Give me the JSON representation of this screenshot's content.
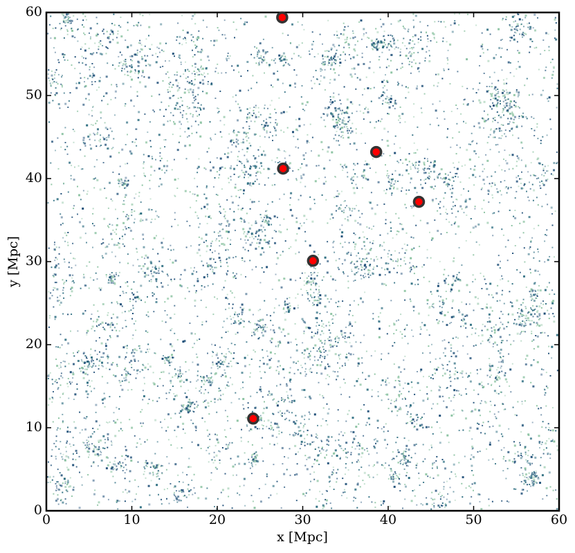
{
  "chart_data": {
    "type": "scatter",
    "xlabel": "x [Mpc]",
    "ylabel": "y [Mpc]",
    "xlim": [
      0,
      60
    ],
    "ylim": [
      0,
      60
    ],
    "xticks": [
      0,
      10,
      20,
      30,
      40,
      50,
      60
    ],
    "yticks": [
      0,
      10,
      20,
      30,
      40,
      50,
      60
    ],
    "series": [
      {
        "color": "#ff0000",
        "edgecolor": "#333333",
        "x": [
          27.6,
          27.7,
          38.6,
          43.6,
          31.2,
          24.2
        ],
        "values": [
          59.4,
          41.2,
          43.2,
          37.2,
          30.1,
          11.1
        ]
      }
    ]
  }
}
